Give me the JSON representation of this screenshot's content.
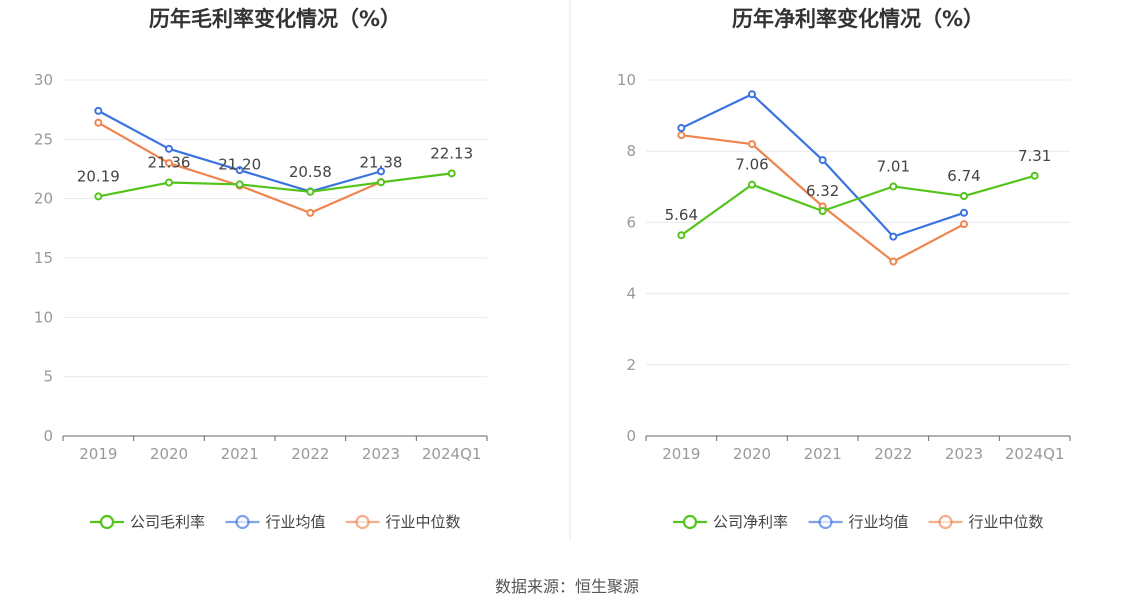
{
  "chart_data": [
    {
      "type": "line",
      "title": "历年毛利率变化情况（%）",
      "categories": [
        "2019",
        "2020",
        "2021",
        "2022",
        "2023",
        "2024Q1"
      ],
      "ylim": [
        0,
        30
      ],
      "yticks": [
        0,
        5,
        10,
        15,
        20,
        25,
        30
      ],
      "grid": true,
      "legend_position": "bottom",
      "series": [
        {
          "name": "公司毛利率",
          "color": "#52c41a",
          "values": [
            20.19,
            21.36,
            21.2,
            20.58,
            21.38,
            22.13
          ],
          "labels": [
            "20.19",
            "21.36",
            "21.20",
            "20.58",
            "21.38",
            "22.13"
          ]
        },
        {
          "name": "行业均值",
          "color": "#3b73e0",
          "values": [
            27.4,
            24.2,
            22.4,
            20.6,
            22.3,
            null
          ]
        },
        {
          "name": "行业中位数",
          "color": "#f0844e",
          "values": [
            26.4,
            23.0,
            21.1,
            18.8,
            21.4,
            null
          ]
        }
      ]
    },
    {
      "type": "line",
      "title": "历年净利率变化情况（%）",
      "categories": [
        "2019",
        "2020",
        "2021",
        "2022",
        "2023",
        "2024Q1"
      ],
      "ylim": [
        0,
        10
      ],
      "yticks": [
        0,
        2,
        4,
        6,
        8,
        10
      ],
      "grid": true,
      "legend_position": "bottom",
      "series": [
        {
          "name": "公司净利率",
          "color": "#52c41a",
          "values": [
            5.64,
            7.06,
            6.32,
            7.01,
            6.74,
            7.31
          ],
          "labels": [
            "5.64",
            "7.06",
            "6.32",
            "7.01",
            "6.74",
            "7.31"
          ]
        },
        {
          "name": "行业均值",
          "color": "#3b73e0",
          "values": [
            8.65,
            9.6,
            7.75,
            5.6,
            6.27,
            null
          ]
        },
        {
          "name": "行业中位数",
          "color": "#f0844e",
          "values": [
            8.45,
            8.2,
            6.45,
            4.9,
            5.95,
            null
          ]
        }
      ]
    }
  ],
  "footer": {
    "source": "数据来源：恒生聚源"
  }
}
